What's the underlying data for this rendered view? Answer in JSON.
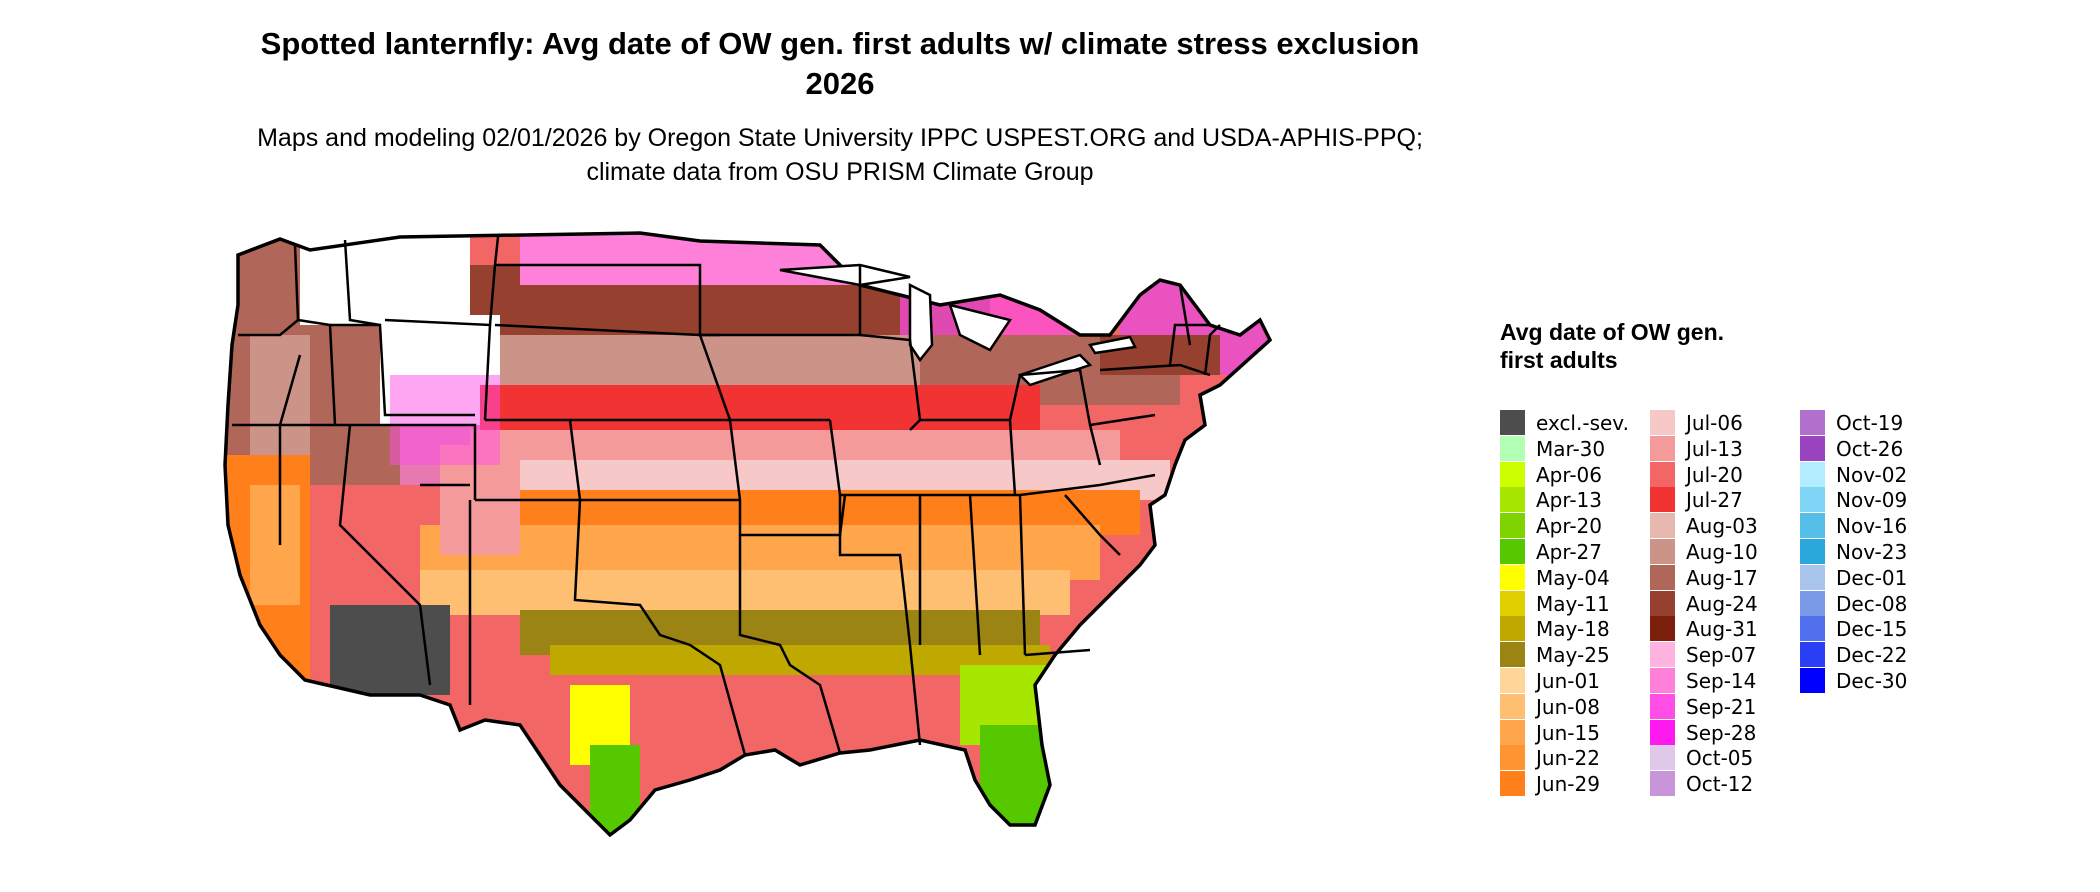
{
  "title": "Spotted lanternfly: Avg date of OW gen. first adults w/ climate stress exclusion 2026",
  "subtitle": "Maps and modeling 02/01/2026 by Oregon State University IPPC USPEST.ORG and USDA-APHIS-PPQ; climate data from OSU PRISM Climate Group",
  "map": {
    "region": "Contiguous United States",
    "state_boundaries": true
  },
  "legend": {
    "title": "Avg date of OW gen. first adults",
    "entries": [
      {
        "label": "excl.-sev.",
        "color": "#4d4d4d"
      },
      {
        "label": "Mar-30",
        "color": "#b3ffb3"
      },
      {
        "label": "Apr-06",
        "color": "#ccff00"
      },
      {
        "label": "Apr-13",
        "color": "#a6e600"
      },
      {
        "label": "Apr-20",
        "color": "#7fd400"
      },
      {
        "label": "Apr-27",
        "color": "#55c800"
      },
      {
        "label": "May-04",
        "color": "#ffff00"
      },
      {
        "label": "May-11",
        "color": "#e0d000"
      },
      {
        "label": "May-18",
        "color": "#bfa800"
      },
      {
        "label": "May-25",
        "color": "#9c8414"
      },
      {
        "label": "Jun-01",
        "color": "#ffd699"
      },
      {
        "label": "Jun-08",
        "color": "#ffbf73"
      },
      {
        "label": "Jun-15",
        "color": "#ffa64d"
      },
      {
        "label": "Jun-22",
        "color": "#ff9433"
      },
      {
        "label": "Jun-29",
        "color": "#ff7f1a"
      },
      {
        "label": "Jul-06",
        "color": "#f7c8c8"
      },
      {
        "label": "Jul-13",
        "color": "#f59a9a"
      },
      {
        "label": "Jul-20",
        "color": "#f26666"
      },
      {
        "label": "Jul-27",
        "color": "#f23333"
      },
      {
        "label": "Aug-03",
        "color": "#e6b8b0"
      },
      {
        "label": "Aug-10",
        "color": "#cc9488"
      },
      {
        "label": "Aug-17",
        "color": "#b06658"
      },
      {
        "label": "Aug-24",
        "color": "#96402f"
      },
      {
        "label": "Aug-31",
        "color": "#7a200d"
      },
      {
        "label": "Sep-07",
        "color": "#ffb3e0"
      },
      {
        "label": "Sep-14",
        "color": "#ff80d9"
      },
      {
        "label": "Sep-21",
        "color": "#ff4de6"
      },
      {
        "label": "Sep-28",
        "color": "#ff1aef"
      },
      {
        "label": "Oct-05",
        "color": "#e0c8e8"
      },
      {
        "label": "Oct-12",
        "color": "#c896d8"
      },
      {
        "label": "Oct-19",
        "color": "#b070cc"
      },
      {
        "label": "Oct-26",
        "color": "#9a44c0"
      },
      {
        "label": "Nov-02",
        "color": "#b3ecff"
      },
      {
        "label": "Nov-09",
        "color": "#80d4f5"
      },
      {
        "label": "Nov-16",
        "color": "#55bfe8"
      },
      {
        "label": "Nov-23",
        "color": "#2aa8dc"
      },
      {
        "label": "Dec-01",
        "color": "#a8c4ec"
      },
      {
        "label": "Dec-08",
        "color": "#7a9ae8"
      },
      {
        "label": "Dec-15",
        "color": "#5070ee"
      },
      {
        "label": "Dec-22",
        "color": "#2a3ff5"
      },
      {
        "label": "Dec-30",
        "color": "#0000ff"
      }
    ]
  }
}
